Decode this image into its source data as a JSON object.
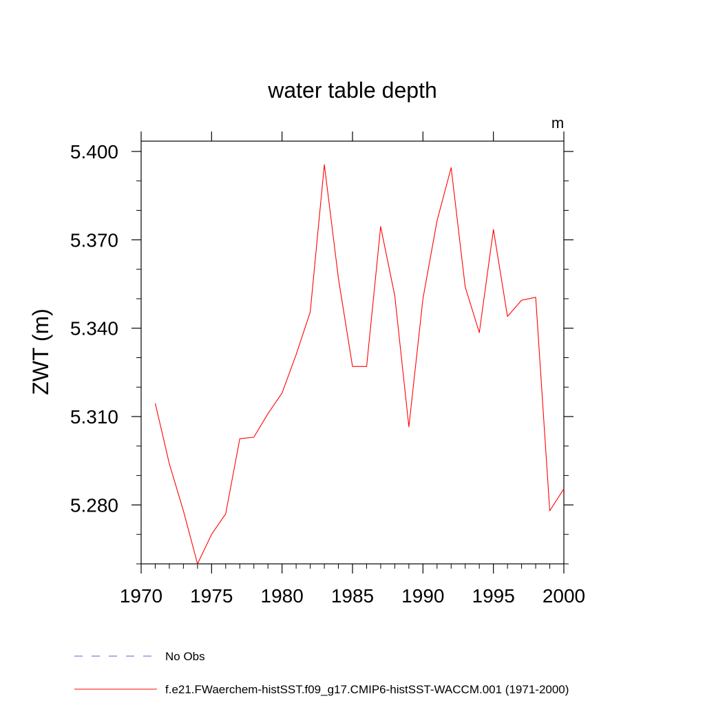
{
  "chart_data": {
    "type": "line",
    "title": "water table depth",
    "units": "m",
    "xlabel": "",
    "ylabel": "ZWT  (m)",
    "xlim": [
      1970,
      2000
    ],
    "ylim": [
      5.26,
      5.4035
    ],
    "xticks": [
      1970,
      1975,
      1980,
      1985,
      1990,
      1995,
      2000
    ],
    "xtick_labels": [
      "1970",
      "1975",
      "1980",
      "1985",
      "1990",
      "1995",
      "2000"
    ],
    "yticks": [
      5.28,
      5.31,
      5.34,
      5.37,
      5.4
    ],
    "ytick_labels": [
      "5.280",
      "5.310",
      "5.340",
      "5.370",
      "5.400"
    ],
    "grid": false,
    "legend_position": "bottom",
    "series": [
      {
        "name": "No Obs",
        "color": "#6a5acd",
        "style": "dashed",
        "x": [],
        "y": []
      },
      {
        "name": "f.e21.FWaerchem-histSST.f09_g17.CMIP6-histSST-WACCM.001 (1971-2000)",
        "color": "#ff0000",
        "style": "solid",
        "x": [
          1971,
          1972,
          1973,
          1974,
          1975,
          1976,
          1977,
          1978,
          1979,
          1980,
          1981,
          1982,
          1983,
          1984,
          1985,
          1986,
          1987,
          1988,
          1989,
          1990,
          1991,
          1992,
          1993,
          1994,
          1995,
          1996,
          1997,
          1998,
          1999,
          2000
        ],
        "y": [
          5.3145,
          5.294,
          5.278,
          5.26,
          5.27,
          5.277,
          5.3025,
          5.303,
          5.311,
          5.318,
          5.331,
          5.3455,
          5.3955,
          5.357,
          5.327,
          5.327,
          5.3745,
          5.351,
          5.3065,
          5.35,
          5.3765,
          5.3945,
          5.354,
          5.3385,
          5.3735,
          5.344,
          5.3495,
          5.3505,
          5.278,
          5.2855
        ]
      }
    ]
  }
}
